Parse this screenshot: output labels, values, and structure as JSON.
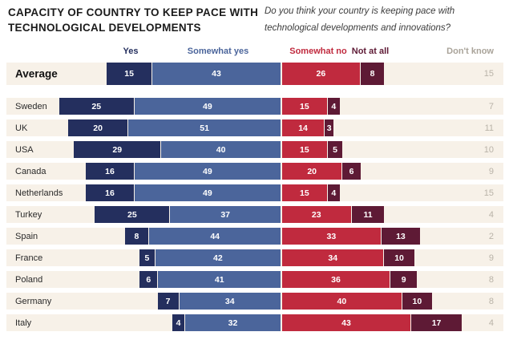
{
  "header": {
    "title": "CAPACITY OF COUNTRY TO KEEP PACE WITH TECHNOLOGICAL DEVELOPMENTS",
    "subtitle": "Do you think your country is keeping pace with technological developments and innovations?"
  },
  "chart_data": {
    "type": "bar",
    "variant": "horizontal-diverging-stacked",
    "unit": "percent",
    "title": "Capacity of country to keep pace with technological developments",
    "question": "Do you think your country is keeping pace with technological developments and innovations?",
    "legend": [
      "Yes",
      "Somewhat yes",
      "Somewhat no",
      "Not at all",
      "Don't know"
    ],
    "legend_position": "top",
    "categories": [
      "Average",
      "Sweden",
      "UK",
      "USA",
      "Canada",
      "Netherlands",
      "Turkey",
      "Spain",
      "France",
      "Poland",
      "Germany",
      "Italy"
    ],
    "series": [
      {
        "name": "Yes",
        "color": "#242f5e",
        "values": [
          15,
          25,
          20,
          29,
          16,
          16,
          25,
          8,
          5,
          6,
          7,
          4
        ]
      },
      {
        "name": "Somewhat yes",
        "color": "#4b659b",
        "values": [
          43,
          49,
          51,
          40,
          49,
          49,
          37,
          44,
          42,
          41,
          34,
          32
        ]
      },
      {
        "name": "Somewhat no",
        "color": "#c02a3e",
        "values": [
          26,
          15,
          14,
          15,
          20,
          15,
          23,
          33,
          34,
          36,
          40,
          43
        ]
      },
      {
        "name": "Not at all",
        "color": "#5e1a35",
        "values": [
          8,
          4,
          3,
          5,
          6,
          4,
          11,
          13,
          10,
          9,
          10,
          17
        ]
      },
      {
        "name": "Don't know",
        "color": "#b9b3a8",
        "values": [
          15,
          7,
          11,
          10,
          9,
          15,
          4,
          2,
          9,
          8,
          8,
          4
        ]
      }
    ],
    "colors": {
      "row_stripe": "#f7f1e8",
      "dont_know_text": "#b9b3a8"
    }
  }
}
